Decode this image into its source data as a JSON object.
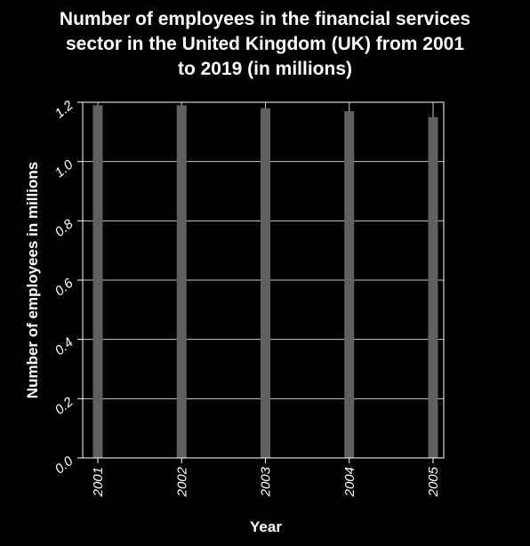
{
  "chart_data": {
    "type": "bar",
    "title_lines": [
      "Number of employees in the financial services",
      "sector in the United Kingdom (UK) from 2001",
      "to 2019 (in millions)"
    ],
    "xlabel": "Year",
    "ylabel": "Number of employees in millions",
    "categories": [
      "2001",
      "2002",
      "2003",
      "2004",
      "2005"
    ],
    "values": [
      1.19,
      1.19,
      1.18,
      1.17,
      1.15
    ],
    "ylim": [
      0,
      1.2
    ],
    "yticks": [
      "0.0",
      "0.2",
      "0.4",
      "0.6",
      "0.8",
      "1.0",
      "1.2"
    ],
    "grid": true,
    "bar_color": "#606060",
    "background_color": "#000000",
    "grid_color": "#c8c8c8"
  }
}
